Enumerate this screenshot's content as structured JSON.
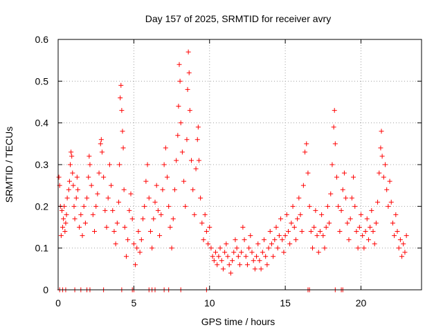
{
  "chart_data": {
    "type": "scatter",
    "title": "Day 157 of 2025, SRMTID for receiver avry",
    "xlabel": "GPS time / hours",
    "ylabel": "SRMTID / TECUs",
    "xlim": [
      0,
      24
    ],
    "ylim": [
      0,
      0.6
    ],
    "xticks": [
      0,
      5,
      10,
      15,
      20
    ],
    "yticks": [
      0,
      0.1,
      0.2,
      0.3,
      0.4,
      0.5,
      0.6
    ],
    "xtick_labels": [
      "0",
      "5",
      "10",
      "15",
      "20"
    ],
    "ytick_labels": [
      "0",
      "0.1",
      "0.2",
      "0.3",
      "0.4",
      "0.5",
      "0.6"
    ],
    "grid": true,
    "marker": "+",
    "series": [
      {
        "name": "SRMTID",
        "color": "#ff0000",
        "points": [
          [
            0.05,
            0.27
          ],
          [
            0.1,
            0.25
          ],
          [
            0.15,
            0.2
          ],
          [
            0.2,
            0.13
          ],
          [
            0.25,
            0.19
          ],
          [
            0.3,
            0.15
          ],
          [
            0.35,
            0.17
          ],
          [
            0.4,
            0.2
          ],
          [
            0.45,
            0.14
          ],
          [
            0.5,
            0.16
          ],
          [
            0.55,
            0.18
          ],
          [
            0.6,
            0.22
          ],
          [
            0.7,
            0.24
          ],
          [
            0.75,
            0.26
          ],
          [
            0.8,
            0.3
          ],
          [
            0.85,
            0.33
          ],
          [
            0.9,
            0.32
          ],
          [
            0.95,
            0.28
          ],
          [
            1.0,
            0.25
          ],
          [
            1.05,
            0.2
          ],
          [
            1.1,
            0.17
          ],
          [
            1.2,
            0.22
          ],
          [
            1.25,
            0.27
          ],
          [
            1.3,
            0.24
          ],
          [
            1.4,
            0.15
          ],
          [
            1.5,
            0.18
          ],
          [
            1.6,
            0.13
          ],
          [
            1.7,
            0.2
          ],
          [
            1.8,
            0.16
          ],
          [
            1.9,
            0.22
          ],
          [
            2.0,
            0.27
          ],
          [
            2.05,
            0.32
          ],
          [
            2.1,
            0.3
          ],
          [
            2.2,
            0.25
          ],
          [
            2.3,
            0.18
          ],
          [
            2.4,
            0.14
          ],
          [
            2.5,
            0.2
          ],
          [
            2.6,
            0.23
          ],
          [
            2.7,
            0.28
          ],
          [
            2.8,
            0.35
          ],
          [
            2.85,
            0.36
          ],
          [
            2.9,
            0.33
          ],
          [
            3.0,
            0.27
          ],
          [
            3.1,
            0.19
          ],
          [
            3.2,
            0.15
          ],
          [
            3.3,
            0.22
          ],
          [
            3.4,
            0.3
          ],
          [
            3.5,
            0.25
          ],
          [
            3.6,
            0.19
          ],
          [
            3.7,
            0.14
          ],
          [
            3.8,
            0.11
          ],
          [
            3.9,
            0.16
          ],
          [
            4.0,
            0.21
          ],
          [
            4.05,
            0.3
          ],
          [
            4.1,
            0.46
          ],
          [
            4.15,
            0.49
          ],
          [
            4.2,
            0.43
          ],
          [
            4.25,
            0.38
          ],
          [
            4.3,
            0.34
          ],
          [
            4.35,
            0.24
          ],
          [
            4.4,
            0.15
          ],
          [
            4.5,
            0.08
          ],
          [
            4.6,
            0.12
          ],
          [
            4.7,
            0.19
          ],
          [
            4.8,
            0.23
          ],
          [
            4.9,
            0.17
          ],
          [
            5.0,
            0.11
          ],
          [
            5.1,
            0.06
          ],
          [
            5.2,
            0.1
          ],
          [
            5.3,
            0.14
          ],
          [
            5.4,
            0.09
          ],
          [
            5.5,
            0.12
          ],
          [
            5.6,
            0.17
          ],
          [
            5.7,
            0.2
          ],
          [
            5.8,
            0.26
          ],
          [
            5.9,
            0.3
          ],
          [
            6.0,
            0.22
          ],
          [
            6.1,
            0.14
          ],
          [
            6.2,
            0.1
          ],
          [
            6.3,
            0.17
          ],
          [
            6.4,
            0.21
          ],
          [
            6.5,
            0.25
          ],
          [
            6.6,
            0.19
          ],
          [
            6.7,
            0.13
          ],
          [
            6.8,
            0.18
          ],
          [
            6.9,
            0.24
          ],
          [
            7.0,
            0.3
          ],
          [
            7.1,
            0.34
          ],
          [
            7.2,
            0.27
          ],
          [
            7.3,
            0.2
          ],
          [
            7.4,
            0.15
          ],
          [
            7.5,
            0.1
          ],
          [
            7.6,
            0.17
          ],
          [
            7.7,
            0.24
          ],
          [
            7.8,
            0.31
          ],
          [
            7.9,
            0.37
          ],
          [
            7.95,
            0.44
          ],
          [
            8.0,
            0.54
          ],
          [
            8.05,
            0.5
          ],
          [
            8.1,
            0.4
          ],
          [
            8.2,
            0.33
          ],
          [
            8.3,
            0.26
          ],
          [
            8.4,
            0.2
          ],
          [
            8.5,
            0.36
          ],
          [
            8.55,
            0.48
          ],
          [
            8.6,
            0.57
          ],
          [
            8.65,
            0.52
          ],
          [
            8.7,
            0.43
          ],
          [
            8.8,
            0.31
          ],
          [
            8.9,
            0.24
          ],
          [
            9.0,
            0.18
          ],
          [
            9.1,
            0.29
          ],
          [
            9.2,
            0.36
          ],
          [
            9.25,
            0.39
          ],
          [
            9.3,
            0.31
          ],
          [
            9.4,
            0.22
          ],
          [
            9.5,
            0.16
          ],
          [
            9.6,
            0.12
          ],
          [
            9.7,
            0.18
          ],
          [
            9.8,
            0.14
          ],
          [
            9.9,
            0.11
          ],
          [
            10.0,
            0.15
          ],
          [
            10.1,
            0.1
          ],
          [
            10.2,
            0.08
          ],
          [
            10.3,
            0.07
          ],
          [
            10.4,
            0.09
          ],
          [
            10.5,
            0.06
          ],
          [
            10.6,
            0.08
          ],
          [
            10.7,
            0.1
          ],
          [
            10.8,
            0.07
          ],
          [
            10.9,
            0.05
          ],
          [
            11.0,
            0.09
          ],
          [
            11.1,
            0.11
          ],
          [
            11.2,
            0.08
          ],
          [
            11.3,
            0.06
          ],
          [
            11.4,
            0.04
          ],
          [
            11.5,
            0.07
          ],
          [
            11.6,
            0.09
          ],
          [
            11.7,
            0.12
          ],
          [
            11.8,
            0.1
          ],
          [
            11.9,
            0.08
          ],
          [
            12.0,
            0.06
          ],
          [
            12.1,
            0.09
          ],
          [
            12.2,
            0.15
          ],
          [
            12.3,
            0.12
          ],
          [
            12.4,
            0.08
          ],
          [
            12.5,
            0.06
          ],
          [
            12.6,
            0.1
          ],
          [
            12.7,
            0.13
          ],
          [
            12.8,
            0.09
          ],
          [
            12.9,
            0.07
          ],
          [
            13.0,
            0.05
          ],
          [
            13.1,
            0.08
          ],
          [
            13.2,
            0.11
          ],
          [
            13.3,
            0.07
          ],
          [
            13.4,
            0.05
          ],
          [
            13.5,
            0.09
          ],
          [
            13.6,
            0.12
          ],
          [
            13.7,
            0.08
          ],
          [
            13.8,
            0.06
          ],
          [
            13.9,
            0.1
          ],
          [
            14.0,
            0.14
          ],
          [
            14.1,
            0.11
          ],
          [
            14.2,
            0.08
          ],
          [
            14.3,
            0.12
          ],
          [
            14.4,
            0.15
          ],
          [
            14.5,
            0.1
          ],
          [
            14.6,
            0.13
          ],
          [
            14.7,
            0.17
          ],
          [
            14.8,
            0.12
          ],
          [
            14.9,
            0.09
          ],
          [
            15.0,
            0.13
          ],
          [
            15.1,
            0.18
          ],
          [
            15.2,
            0.14
          ],
          [
            15.3,
            0.11
          ],
          [
            15.4,
            0.16
          ],
          [
            15.5,
            0.2
          ],
          [
            15.6,
            0.15
          ],
          [
            15.7,
            0.12
          ],
          [
            15.8,
            0.17
          ],
          [
            15.9,
            0.22
          ],
          [
            16.0,
            0.18
          ],
          [
            16.1,
            0.14
          ],
          [
            16.2,
            0.25
          ],
          [
            16.3,
            0.33
          ],
          [
            16.4,
            0.35
          ],
          [
            16.5,
            0.28
          ],
          [
            16.6,
            0.2
          ],
          [
            16.7,
            0.14
          ],
          [
            16.8,
            0.1
          ],
          [
            16.9,
            0.15
          ],
          [
            17.0,
            0.19
          ],
          [
            17.1,
            0.13
          ],
          [
            17.2,
            0.09
          ],
          [
            17.3,
            0.14
          ],
          [
            17.4,
            0.18
          ],
          [
            17.5,
            0.13
          ],
          [
            17.6,
            0.1
          ],
          [
            17.7,
            0.15
          ],
          [
            17.8,
            0.2
          ],
          [
            17.9,
            0.16
          ],
          [
            18.0,
            0.23
          ],
          [
            18.1,
            0.3
          ],
          [
            18.2,
            0.39
          ],
          [
            18.25,
            0.43
          ],
          [
            18.3,
            0.35
          ],
          [
            18.4,
            0.27
          ],
          [
            18.5,
            0.2
          ],
          [
            18.6,
            0.14
          ],
          [
            18.7,
            0.19
          ],
          [
            18.8,
            0.24
          ],
          [
            18.9,
            0.28
          ],
          [
            19.0,
            0.22
          ],
          [
            19.1,
            0.16
          ],
          [
            19.2,
            0.12
          ],
          [
            19.3,
            0.17
          ],
          [
            19.4,
            0.22
          ],
          [
            19.5,
            0.27
          ],
          [
            19.6,
            0.2
          ],
          [
            19.7,
            0.14
          ],
          [
            19.8,
            0.1
          ],
          [
            19.9,
            0.15
          ],
          [
            20.0,
            0.18
          ],
          [
            20.1,
            0.13
          ],
          [
            20.2,
            0.1
          ],
          [
            20.3,
            0.14
          ],
          [
            20.4,
            0.17
          ],
          [
            20.5,
            0.12
          ],
          [
            20.6,
            0.15
          ],
          [
            20.7,
            0.19
          ],
          [
            20.8,
            0.14
          ],
          [
            20.9,
            0.11
          ],
          [
            21.0,
            0.16
          ],
          [
            21.1,
            0.21
          ],
          [
            21.2,
            0.28
          ],
          [
            21.3,
            0.34
          ],
          [
            21.35,
            0.38
          ],
          [
            21.4,
            0.32
          ],
          [
            21.5,
            0.27
          ],
          [
            21.6,
            0.3
          ],
          [
            21.7,
            0.24
          ],
          [
            21.8,
            0.2
          ],
          [
            21.9,
            0.26
          ],
          [
            22.0,
            0.21
          ],
          [
            22.1,
            0.16
          ],
          [
            22.2,
            0.13
          ],
          [
            22.3,
            0.18
          ],
          [
            22.4,
            0.14
          ],
          [
            22.5,
            0.1
          ],
          [
            22.6,
            0.12
          ],
          [
            22.7,
            0.08
          ],
          [
            22.8,
            0.11
          ],
          [
            22.9,
            0.09
          ],
          [
            23.0,
            0.13
          ],
          [
            0.1,
            0.0
          ],
          [
            0.3,
            0.0
          ],
          [
            0.5,
            0.0
          ],
          [
            1.1,
            0.0
          ],
          [
            1.5,
            0.0
          ],
          [
            1.9,
            0.0
          ],
          [
            2.1,
            0.0
          ],
          [
            3.0,
            0.0
          ],
          [
            4.2,
            0.0
          ],
          [
            4.9,
            0.0
          ],
          [
            5.0,
            0.0
          ],
          [
            6.0,
            0.0
          ],
          [
            6.2,
            0.0
          ],
          [
            6.4,
            0.0
          ],
          [
            7.0,
            0.0
          ],
          [
            7.3,
            0.0
          ],
          [
            8.1,
            0.0
          ],
          [
            9.8,
            0.0
          ],
          [
            16.5,
            0.0
          ],
          [
            16.6,
            0.0
          ],
          [
            18.3,
            0.0
          ],
          [
            18.7,
            0.0
          ],
          [
            18.8,
            0.0
          ]
        ]
      }
    ]
  }
}
